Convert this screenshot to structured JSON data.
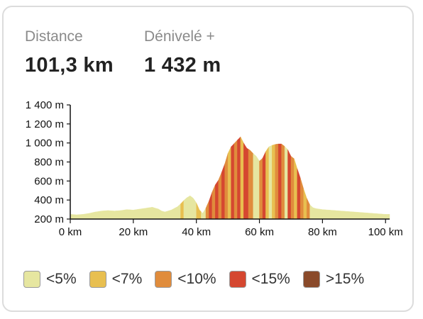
{
  "stats": {
    "distance": {
      "label": "Distance",
      "value": "101,3 km"
    },
    "elevation": {
      "label": "Dénivelé +",
      "value": "1 432 m"
    }
  },
  "colors": {
    "lt5": "#e6e6a0",
    "lt7": "#e8bf50",
    "lt10": "#e08c3c",
    "lt15": "#d54730",
    "gt15": "#8a4a2a"
  },
  "legend": [
    {
      "key": "lt5",
      "label": "<5%"
    },
    {
      "key": "lt7",
      "label": "<7%"
    },
    {
      "key": "lt10",
      "label": "<10%"
    },
    {
      "key": "lt15",
      "label": "<15%"
    },
    {
      "key": "gt15",
      "label": ">15%"
    }
  ],
  "chart_data": {
    "type": "area",
    "xlabel": "",
    "ylabel": "",
    "xlim": [
      0,
      101.3
    ],
    "ylim": [
      200,
      1400
    ],
    "x_ticks": [
      {
        "value": 0,
        "label": "0 km"
      },
      {
        "value": 20,
        "label": "20 km"
      },
      {
        "value": 40,
        "label": "40 km"
      },
      {
        "value": 60,
        "label": "60 km"
      },
      {
        "value": 80,
        "label": "80 km"
      },
      {
        "value": 100,
        "label": "100 km"
      }
    ],
    "y_ticks": [
      {
        "value": 200,
        "label": "200 m"
      },
      {
        "value": 400,
        "label": "400 m"
      },
      {
        "value": 600,
        "label": "600 m"
      },
      {
        "value": 800,
        "label": "800 m"
      },
      {
        "value": 1000,
        "label": "1 000 m"
      },
      {
        "value": 1200,
        "label": "1 200 m"
      },
      {
        "value": 1400,
        "label": "1 400 m"
      }
    ],
    "series": [
      {
        "x": [
          0,
          2,
          4,
          6,
          8,
          10,
          12,
          14,
          16,
          18,
          20,
          22,
          24,
          26,
          28,
          29,
          30,
          32,
          34,
          35,
          36,
          37,
          38,
          39,
          40,
          41,
          42,
          43,
          44,
          45,
          46,
          47,
          48,
          49,
          50,
          51,
          52,
          53,
          54,
          55,
          56,
          57,
          58,
          59,
          60,
          61,
          62,
          63,
          64,
          65,
          66,
          67,
          68,
          69,
          70,
          71,
          72,
          73,
          74,
          75,
          76,
          77,
          78,
          79,
          80,
          82,
          84,
          86,
          88,
          90,
          92,
          94,
          96,
          98,
          100,
          101.3
        ],
        "y": [
          250,
          245,
          250,
          260,
          275,
          285,
          290,
          285,
          290,
          300,
          295,
          305,
          315,
          325,
          305,
          285,
          275,
          295,
          330,
          360,
          395,
          425,
          445,
          420,
          370,
          295,
          260,
          315,
          390,
          485,
          560,
          610,
          690,
          780,
          890,
          960,
          995,
          1030,
          1065,
          1000,
          945,
          925,
          890,
          860,
          810,
          840,
          910,
          960,
          975,
          985,
          990,
          990,
          965,
          930,
          860,
          835,
          730,
          630,
          520,
          420,
          350,
          320,
          310,
          305,
          300,
          295,
          290,
          285,
          280,
          275,
          270,
          265,
          260,
          255,
          250,
          250
        ]
      }
    ],
    "gradient_segments": [
      {
        "from": 0,
        "to": 35,
        "class": "lt5"
      },
      {
        "from": 35,
        "to": 36,
        "class": "lt7"
      },
      {
        "from": 36,
        "to": 40,
        "class": "lt5"
      },
      {
        "from": 40,
        "to": 41.5,
        "class": "lt7"
      },
      {
        "from": 41.5,
        "to": 43,
        "class": "lt5"
      },
      {
        "from": 43,
        "to": 44,
        "class": "lt10"
      },
      {
        "from": 44,
        "to": 45,
        "class": "lt15"
      },
      {
        "from": 45,
        "to": 46,
        "class": "lt10"
      },
      {
        "from": 46,
        "to": 47,
        "class": "lt15"
      },
      {
        "from": 47,
        "to": 48,
        "class": "lt10"
      },
      {
        "from": 48,
        "to": 49,
        "class": "lt15"
      },
      {
        "from": 49,
        "to": 50,
        "class": "lt10"
      },
      {
        "from": 50,
        "to": 51,
        "class": "lt7"
      },
      {
        "from": 51,
        "to": 52,
        "class": "lt15"
      },
      {
        "from": 52,
        "to": 53,
        "class": "lt10"
      },
      {
        "from": 53,
        "to": 54,
        "class": "lt15"
      },
      {
        "from": 54,
        "to": 55,
        "class": "lt7"
      },
      {
        "from": 55,
        "to": 56.5,
        "class": "lt15"
      },
      {
        "from": 56.5,
        "to": 58,
        "class": "lt10"
      },
      {
        "from": 58,
        "to": 60,
        "class": "lt5"
      },
      {
        "from": 60,
        "to": 61,
        "class": "lt10"
      },
      {
        "from": 61,
        "to": 62,
        "class": "lt15"
      },
      {
        "from": 62,
        "to": 63,
        "class": "lt7"
      },
      {
        "from": 63,
        "to": 64,
        "class": "lt5"
      },
      {
        "from": 64,
        "to": 65,
        "class": "lt7"
      },
      {
        "from": 65,
        "to": 66,
        "class": "lt10"
      },
      {
        "from": 66,
        "to": 67,
        "class": "lt15"
      },
      {
        "from": 67,
        "to": 68,
        "class": "lt10"
      },
      {
        "from": 68,
        "to": 69,
        "class": "lt5"
      },
      {
        "from": 69,
        "to": 70,
        "class": "lt15"
      },
      {
        "from": 70,
        "to": 71,
        "class": "lt10"
      },
      {
        "from": 71,
        "to": 72,
        "class": "lt7"
      },
      {
        "from": 72,
        "to": 73,
        "class": "lt15"
      },
      {
        "from": 73,
        "to": 74,
        "class": "lt10"
      },
      {
        "from": 74,
        "to": 75,
        "class": "lt7"
      },
      {
        "from": 75,
        "to": 76,
        "class": "lt10"
      },
      {
        "from": 76,
        "to": 101.3,
        "class": "lt5"
      }
    ]
  }
}
